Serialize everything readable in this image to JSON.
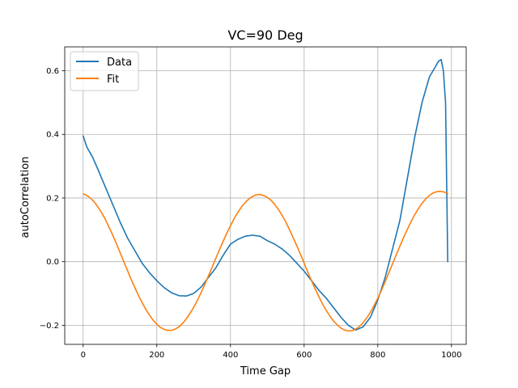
{
  "chart_data": {
    "type": "line",
    "title": "VC=90 Deg",
    "xlabel": "Time Gap",
    "ylabel": "autoCorrelation",
    "xlim": [
      -50,
      1040
    ],
    "ylim": [
      -0.26,
      0.675
    ],
    "xticks": [
      0,
      200,
      400,
      600,
      800,
      1000
    ],
    "xtick_labels": [
      "0",
      "200",
      "400",
      "600",
      "800",
      "1000"
    ],
    "yticks": [
      -0.2,
      0.0,
      0.2,
      0.4,
      0.6
    ],
    "ytick_labels": [
      "−0.2",
      "0.0",
      "0.2",
      "0.4",
      "0.6"
    ],
    "grid": true,
    "legend_position": "top-left",
    "series": [
      {
        "name": "Data",
        "color": "#1f77b4",
        "x": [
          0,
          10,
          25,
          40,
          60,
          80,
          100,
          120,
          140,
          160,
          180,
          200,
          220,
          240,
          260,
          280,
          300,
          320,
          340,
          360,
          380,
          400,
          420,
          440,
          460,
          480,
          500,
          520,
          540,
          560,
          580,
          600,
          620,
          640,
          660,
          680,
          700,
          720,
          740,
          760,
          780,
          800,
          820,
          840,
          860,
          880,
          900,
          920,
          940,
          955,
          965,
          972,
          978,
          984,
          990
        ],
        "y": [
          0.395,
          0.36,
          0.33,
          0.29,
          0.235,
          0.18,
          0.125,
          0.075,
          0.035,
          -0.005,
          -0.035,
          -0.06,
          -0.082,
          -0.098,
          -0.107,
          -0.108,
          -0.1,
          -0.08,
          -0.05,
          -0.02,
          0.02,
          0.055,
          0.07,
          0.08,
          0.083,
          0.08,
          0.066,
          0.055,
          0.04,
          0.02,
          -0.005,
          -0.03,
          -0.06,
          -0.09,
          -0.115,
          -0.145,
          -0.175,
          -0.2,
          -0.215,
          -0.205,
          -0.175,
          -0.12,
          -0.05,
          0.04,
          0.13,
          0.26,
          0.39,
          0.5,
          0.58,
          0.61,
          0.63,
          0.635,
          0.6,
          0.5,
          0.0
        ]
      },
      {
        "name": "Fit",
        "color": "#ff7f0e",
        "x": [
          0,
          10,
          20,
          30,
          40,
          50,
          60,
          70,
          80,
          90,
          100,
          110,
          120,
          130,
          140,
          150,
          160,
          170,
          180,
          190,
          200,
          210,
          220,
          230,
          240,
          250,
          260,
          270,
          280,
          290,
          300,
          310,
          320,
          330,
          340,
          350,
          360,
          370,
          380,
          390,
          400,
          410,
          420,
          430,
          440,
          450,
          460,
          470,
          480,
          490,
          500,
          510,
          520,
          530,
          540,
          550,
          560,
          570,
          580,
          590,
          600,
          610,
          620,
          630,
          640,
          650,
          660,
          670,
          680,
          690,
          700,
          710,
          720,
          730,
          740,
          750,
          760,
          770,
          780,
          790,
          800,
          810,
          820,
          830,
          840,
          850,
          860,
          870,
          880,
          890,
          900,
          910,
          920,
          930,
          940,
          950,
          960,
          970,
          980,
          990
        ],
        "y": [
          0.213,
          0.208,
          0.199,
          0.188,
          0.172,
          0.154,
          0.133,
          0.109,
          0.084,
          0.057,
          0.029,
          0.001,
          -0.027,
          -0.055,
          -0.081,
          -0.106,
          -0.129,
          -0.15,
          -0.168,
          -0.184,
          -0.197,
          -0.207,
          -0.213,
          -0.216,
          -0.216,
          -0.212,
          -0.205,
          -0.194,
          -0.18,
          -0.163,
          -0.144,
          -0.122,
          -0.098,
          -0.072,
          -0.045,
          -0.018,
          0.01,
          0.037,
          0.064,
          0.089,
          0.113,
          0.135,
          0.155,
          0.172,
          0.186,
          0.197,
          0.205,
          0.21,
          0.211,
          0.208,
          0.202,
          0.193,
          0.18,
          0.164,
          0.146,
          0.125,
          0.101,
          0.076,
          0.05,
          0.023,
          -0.005,
          -0.033,
          -0.06,
          -0.086,
          -0.11,
          -0.133,
          -0.153,
          -0.171,
          -0.187,
          -0.199,
          -0.209,
          -0.215,
          -0.218,
          -0.217,
          -0.212,
          -0.204,
          -0.192,
          -0.177,
          -0.159,
          -0.138,
          -0.115,
          -0.09,
          -0.063,
          -0.035,
          -0.007,
          0.021,
          0.049,
          0.076,
          0.101,
          0.125,
          0.147,
          0.166,
          0.183,
          0.197,
          0.208,
          0.216,
          0.22,
          0.221,
          0.219,
          0.214
        ]
      }
    ]
  }
}
